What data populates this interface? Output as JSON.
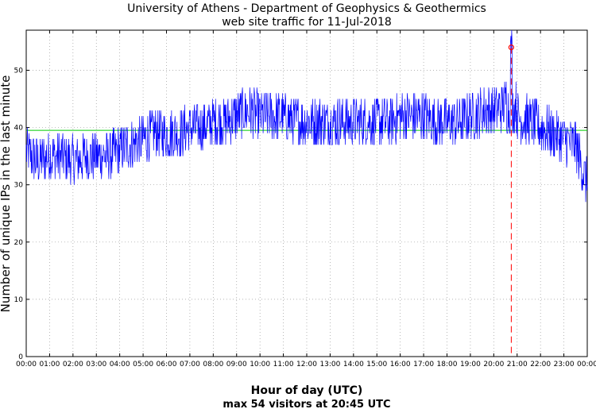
{
  "chart_data": {
    "type": "line",
    "title": "University of Athens - Department of Geophysics & Geothermics",
    "subtitle": "web site traffic for 11-Jul-2018",
    "xlabel": "Hour of day (UTC)",
    "ylabel": "Number of unique IPs in the last minute",
    "caption": "max 54 visitors at 20:45 UTC",
    "x_ticks": [
      "00:00",
      "01:00",
      "02:00",
      "03:00",
      "04:00",
      "05:00",
      "06:00",
      "07:00",
      "08:00",
      "09:00",
      "10:00",
      "11:00",
      "12:00",
      "13:00",
      "14:00",
      "15:00",
      "16:00",
      "17:00",
      "18:00",
      "19:00",
      "20:00",
      "21:00",
      "22:00",
      "23:00",
      "00:00"
    ],
    "y_ticks": [
      "0",
      "10",
      "20",
      "30",
      "40",
      "50"
    ],
    "xlim_hours": [
      0,
      24
    ],
    "ylim": [
      0,
      57
    ],
    "grid": true,
    "series": [
      {
        "color": "#0000ff",
        "x_hours": [
          0.0,
          0.5,
          1.0,
          1.5,
          2.0,
          2.5,
          3.0,
          3.5,
          4.0,
          4.5,
          5.0,
          5.5,
          6.0,
          6.5,
          7.0,
          7.5,
          8.0,
          8.5,
          9.0,
          9.5,
          10.0,
          10.5,
          11.0,
          11.5,
          12.0,
          12.5,
          13.0,
          13.5,
          14.0,
          14.5,
          15.0,
          15.5,
          16.0,
          16.5,
          17.0,
          17.5,
          18.0,
          18.5,
          19.0,
          19.5,
          20.0,
          20.5,
          20.75,
          21.0,
          21.5,
          22.0,
          22.5,
          23.0,
          23.5,
          24.0
        ],
        "values": [
          36,
          34,
          35,
          35,
          34,
          35,
          35,
          35,
          36,
          37,
          38,
          39,
          39,
          39,
          40,
          40,
          41,
          41,
          42,
          43,
          42,
          42,
          42,
          41,
          41,
          41,
          41,
          41,
          41,
          41,
          41,
          41,
          42,
          42,
          42,
          41,
          41,
          41,
          42,
          43,
          43,
          44,
          54,
          42,
          41,
          40,
          39,
          38,
          37,
          30
        ]
      }
    ],
    "mean_line": {
      "value": 39.5,
      "color": "#00cc00"
    },
    "max_marker": {
      "x_hours": 20.75,
      "value": 54,
      "color": "#ff0000"
    }
  }
}
